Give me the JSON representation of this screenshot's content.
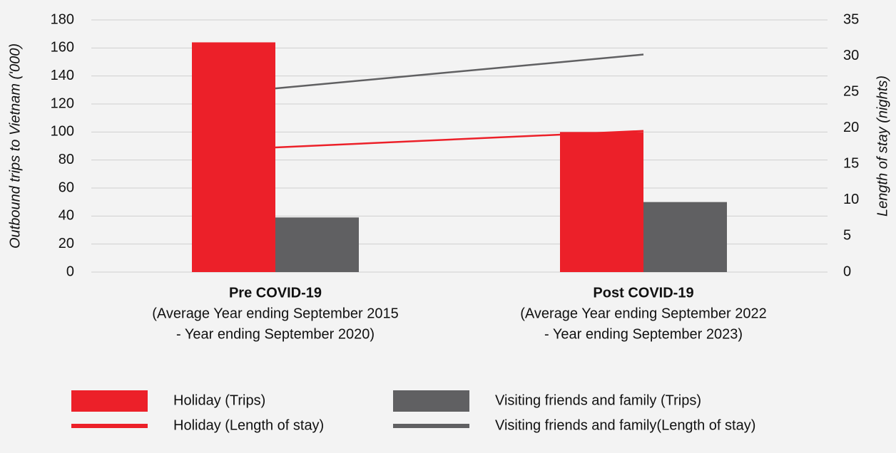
{
  "chart_data": {
    "type": "bar",
    "categories": [
      "Pre COVID-19",
      "Post COVID-19"
    ],
    "category_sublabels": [
      [
        "(Average Year ending September 2015",
        "- Year ending September 2020)"
      ],
      [
        "(Average Year ending September 2022",
        "- Year ending September 2023)"
      ]
    ],
    "ylabel": "Outbound trips to Vietnam ('000)",
    "y2label": "Length of stay (nights)",
    "ylim": [
      0,
      180
    ],
    "yticks": [
      0,
      20,
      40,
      60,
      80,
      100,
      120,
      140,
      160,
      180
    ],
    "y2lim": [
      0,
      35
    ],
    "y2ticks": [
      0,
      5,
      10,
      15,
      20,
      25,
      30,
      35
    ],
    "grid": true,
    "series": [
      {
        "name": "Holiday (Trips)",
        "type": "bar",
        "color": "#ec2029",
        "values": [
          164,
          100
        ]
      },
      {
        "name": "Visiting friends and family (Trips)",
        "type": "bar",
        "color": "#606062",
        "values": [
          39,
          50
        ]
      },
      {
        "name": "Holiday (Length of stay)",
        "type": "line",
        "axis": "y2",
        "color": "#ec2029",
        "values": [
          17.3,
          19.6
        ]
      },
      {
        "name": "Visiting friends and family(Length of stay)",
        "type": "line",
        "axis": "y2",
        "color": "#606062",
        "values": [
          25.5,
          30.2
        ]
      }
    ]
  }
}
